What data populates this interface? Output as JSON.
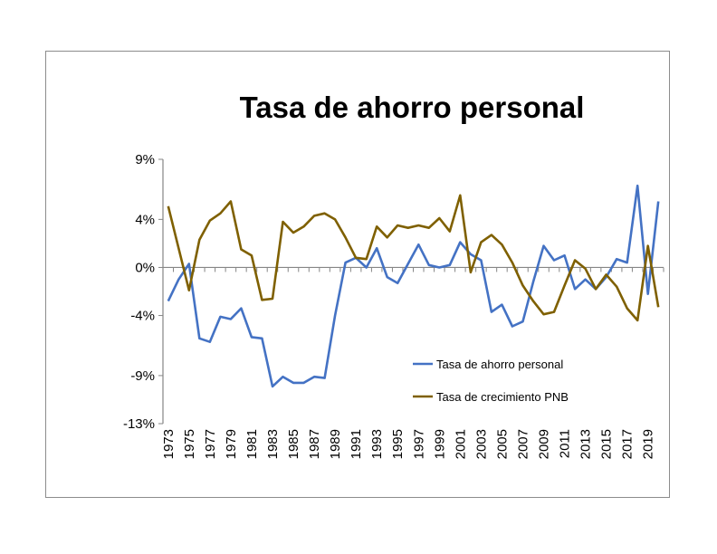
{
  "chart_data": {
    "type": "line",
    "title": "Tasa de ahorro personal",
    "xlabel": "",
    "ylabel": "",
    "x": [
      1973,
      1974,
      1975,
      1976,
      1977,
      1978,
      1979,
      1980,
      1981,
      1982,
      1983,
      1984,
      1985,
      1986,
      1987,
      1988,
      1989,
      1990,
      1991,
      1992,
      1993,
      1994,
      1995,
      1996,
      1997,
      1998,
      1999,
      2000,
      2001,
      2002,
      2003,
      2004,
      2005,
      2006,
      2007,
      2008,
      2009,
      2010,
      2011,
      2012,
      2013,
      2014,
      2015,
      2016,
      2017,
      2018,
      2019,
      2020
    ],
    "x_tick_labels": [
      "1973",
      "1975",
      "1977",
      "1979",
      "1981",
      "1983",
      "1985",
      "1987",
      "1989",
      "1991",
      "1993",
      "1995",
      "1997",
      "1999",
      "2001",
      "2003",
      "2005",
      "2007",
      "2009",
      "2011",
      "2013",
      "2015",
      "2017",
      "2019"
    ],
    "y_tick_labels": [
      "9%",
      "4%",
      "0%",
      "-4%",
      "-9%",
      "-13%"
    ],
    "ylim": [
      -13,
      9
    ],
    "grid": false,
    "legend_position": "bottom-right",
    "series": [
      {
        "name": "Tasa de ahorro personal",
        "color": "#4472C4",
        "values": [
          -2.8,
          -1.0,
          0.3,
          -5.9,
          -6.2,
          -4.1,
          -4.3,
          -3.4,
          -5.8,
          -5.9,
          -9.9,
          -9.1,
          -9.6,
          -9.6,
          -9.1,
          -9.2,
          -4.0,
          0.4,
          0.8,
          0.0,
          1.6,
          -0.8,
          -1.3,
          0.3,
          1.9,
          0.2,
          0.0,
          0.2,
          2.1,
          1.1,
          0.6,
          -3.7,
          -3.1,
          -4.9,
          -4.5,
          -1.2,
          1.8,
          0.6,
          1.0,
          -1.8,
          -1.0,
          -1.8,
          -0.8,
          0.7,
          0.4,
          6.8,
          -2.2,
          5.5
        ]
      },
      {
        "name": "Tasa de crecimiento PNB",
        "color": "#7F6000",
        "values": [
          5.1,
          1.6,
          -1.9,
          2.3,
          3.9,
          4.5,
          5.5,
          1.5,
          1.0,
          -2.7,
          -2.6,
          3.8,
          2.9,
          3.4,
          4.3,
          4.5,
          4.0,
          2.5,
          0.8,
          0.7,
          3.4,
          2.5,
          3.5,
          3.3,
          3.5,
          3.3,
          4.1,
          3.0,
          6.0,
          -0.4,
          2.1,
          2.7,
          1.9,
          0.4,
          -1.5,
          -2.8,
          -3.9,
          -3.7,
          -1.5,
          0.6,
          -0.1,
          -1.8,
          -0.6,
          -1.6,
          -3.4,
          -4.4,
          1.8,
          -3.3
        ]
      }
    ]
  }
}
